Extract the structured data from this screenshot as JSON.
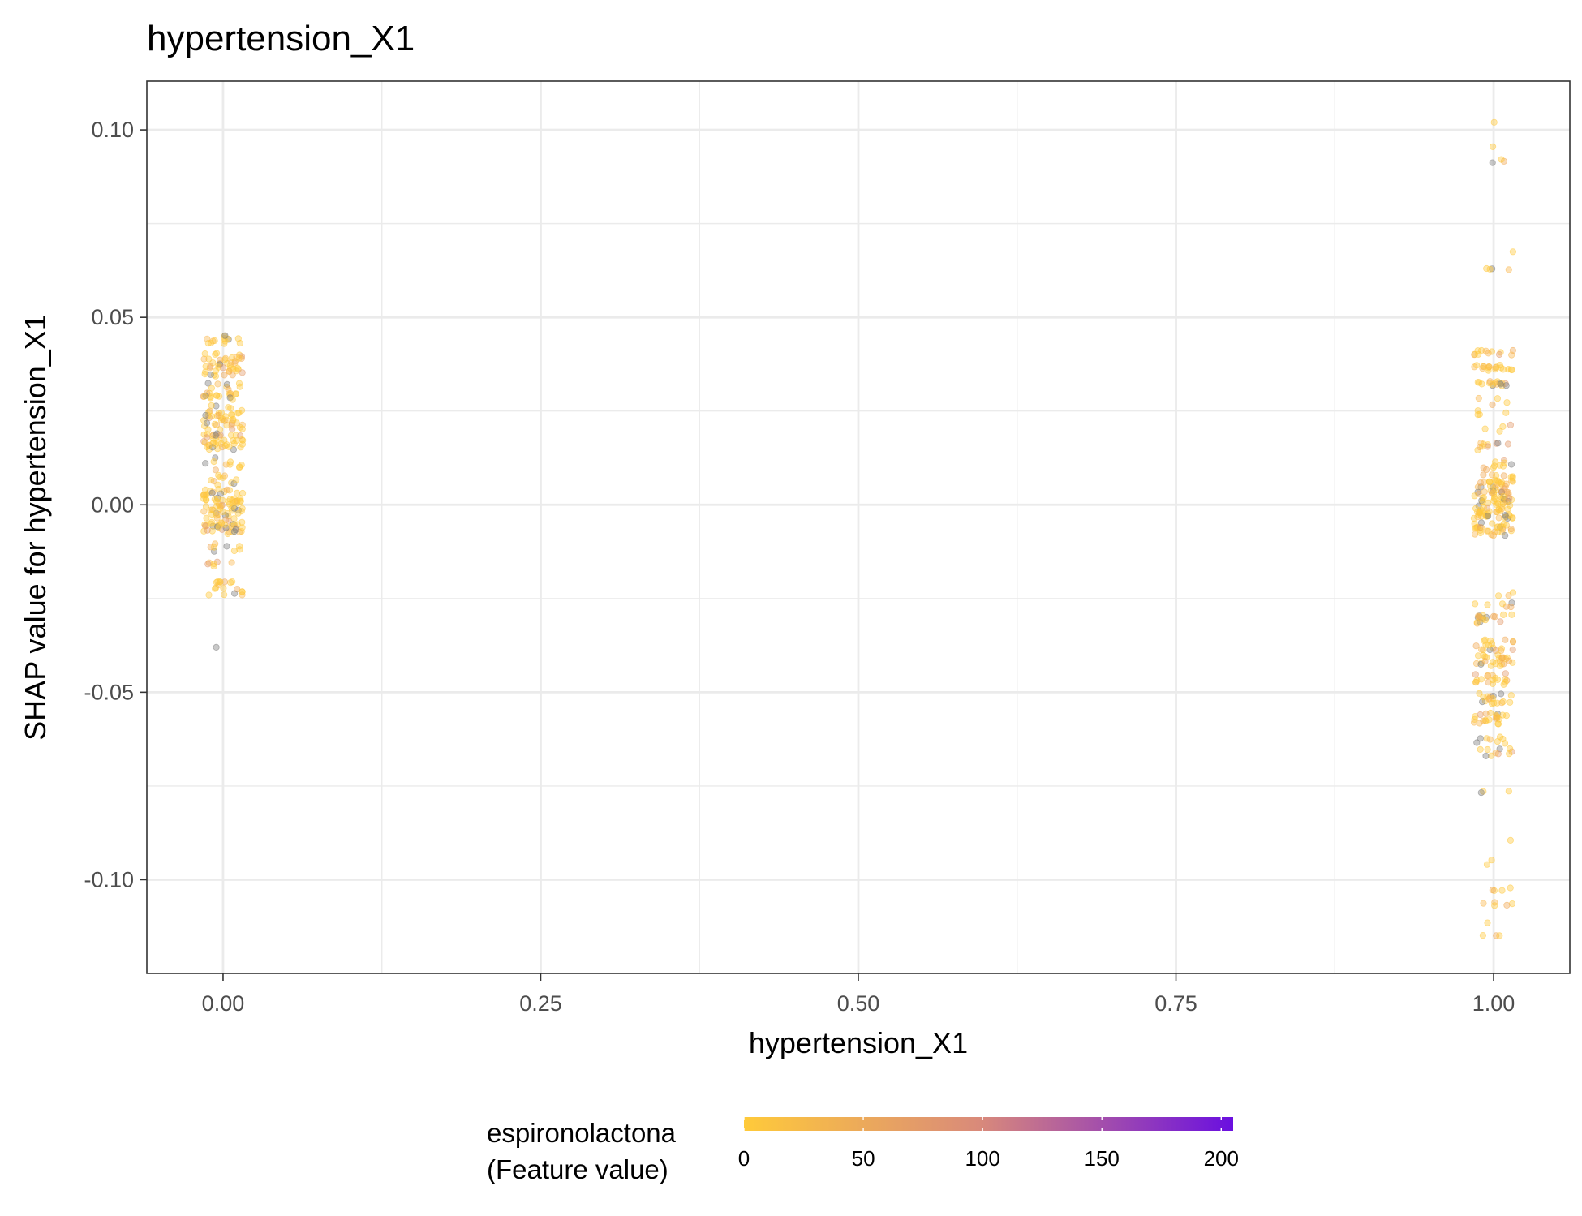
{
  "chart_data": {
    "type": "scatter",
    "title": "hypertension_X1",
    "xlabel": "hypertension_X1",
    "ylabel": "SHAP value for hypertension_X1",
    "xlim": [
      -0.06,
      1.06
    ],
    "ylim": [
      -0.125,
      0.113
    ],
    "x_ticks": [
      0.0,
      0.25,
      0.5,
      0.75,
      1.0
    ],
    "x_tick_labels": [
      "0.00",
      "0.25",
      "0.50",
      "0.75",
      "1.00"
    ],
    "y_ticks": [
      -0.1,
      -0.05,
      0.0,
      0.05,
      0.1
    ],
    "y_tick_labels": [
      "-0.10",
      "-0.05",
      "0.00",
      "0.05",
      "0.10"
    ],
    "grid": true,
    "legend": {
      "title_line1": "espironolactona",
      "title_line2": "(Feature value)",
      "position": "bottom",
      "scale_min": 0,
      "scale_max": 205,
      "ticks": [
        0,
        50,
        100,
        150,
        200
      ],
      "tick_labels": [
        "0",
        "50",
        "100",
        "150",
        "200"
      ],
      "color_low": "#FFCA3A",
      "color_mid": "#D98A7A",
      "color_high": "#6A0FE0",
      "na_color": "#7f7f7f"
    },
    "series": [
      {
        "x": 0,
        "clusters": [
          {
            "y": 0.044,
            "n": 14,
            "spread": 0.0012
          },
          {
            "y": 0.0385,
            "n": 26,
            "spread": 0.002
          },
          {
            "y": 0.0355,
            "n": 18,
            "spread": 0.0012
          },
          {
            "y": 0.0315,
            "n": 8,
            "spread": 0.001
          },
          {
            "y": 0.029,
            "n": 18,
            "spread": 0.001
          },
          {
            "y": 0.0255,
            "n": 8,
            "spread": 0.001
          },
          {
            "y": 0.0225,
            "n": 34,
            "spread": 0.0025
          },
          {
            "y": 0.0175,
            "n": 26,
            "spread": 0.0015
          },
          {
            "y": 0.0155,
            "n": 14,
            "spread": 0.001
          },
          {
            "y": 0.011,
            "n": 10,
            "spread": 0.002
          },
          {
            "y": 0.006,
            "n": 10,
            "spread": 0.002
          },
          {
            "y": 0.002,
            "n": 38,
            "spread": 0.0022
          },
          {
            "y": -0.002,
            "n": 30,
            "spread": 0.002
          },
          {
            "y": -0.006,
            "n": 34,
            "spread": 0.002
          },
          {
            "y": -0.011,
            "n": 8,
            "spread": 0.0015
          },
          {
            "y": -0.0155,
            "n": 6,
            "spread": 0.001
          },
          {
            "y": -0.0215,
            "n": 12,
            "spread": 0.001
          },
          {
            "y": -0.0235,
            "n": 6,
            "spread": 0.001
          },
          {
            "y": -0.038,
            "n": 1,
            "spread": 0.0
          }
        ]
      },
      {
        "x": 1,
        "clusters": [
          {
            "y": 0.102,
            "n": 1,
            "spread": 0.0
          },
          {
            "y": 0.0955,
            "n": 1,
            "spread": 0.0
          },
          {
            "y": 0.0915,
            "n": 3,
            "spread": 0.0006
          },
          {
            "y": 0.0675,
            "n": 1,
            "spread": 0.0
          },
          {
            "y": 0.063,
            "n": 4,
            "spread": 0.0004
          },
          {
            "y": 0.0405,
            "n": 12,
            "spread": 0.0008
          },
          {
            "y": 0.0365,
            "n": 18,
            "spread": 0.0008
          },
          {
            "y": 0.0325,
            "n": 16,
            "spread": 0.0008
          },
          {
            "y": 0.0275,
            "n": 4,
            "spread": 0.001
          },
          {
            "y": 0.0245,
            "n": 4,
            "spread": 0.001
          },
          {
            "y": 0.0205,
            "n": 4,
            "spread": 0.001
          },
          {
            "y": 0.0155,
            "n": 10,
            "spread": 0.001
          },
          {
            "y": 0.0105,
            "n": 10,
            "spread": 0.0015
          },
          {
            "y": 0.006,
            "n": 30,
            "spread": 0.002
          },
          {
            "y": 0.002,
            "n": 40,
            "spread": 0.002
          },
          {
            "y": -0.002,
            "n": 40,
            "spread": 0.002
          },
          {
            "y": -0.0065,
            "n": 30,
            "spread": 0.0018
          },
          {
            "y": -0.0235,
            "n": 3,
            "spread": 0.001
          },
          {
            "y": -0.0265,
            "n": 6,
            "spread": 0.001
          },
          {
            "y": -0.0305,
            "n": 18,
            "spread": 0.0012
          },
          {
            "y": -0.0375,
            "n": 18,
            "spread": 0.0015
          },
          {
            "y": -0.0415,
            "n": 24,
            "spread": 0.0015
          },
          {
            "y": -0.0465,
            "n": 18,
            "spread": 0.0015
          },
          {
            "y": -0.0515,
            "n": 18,
            "spread": 0.0015
          },
          {
            "y": -0.057,
            "n": 22,
            "spread": 0.0015
          },
          {
            "y": -0.0625,
            "n": 8,
            "spread": 0.0012
          },
          {
            "y": -0.066,
            "n": 10,
            "spread": 0.001
          },
          {
            "y": -0.0765,
            "n": 3,
            "spread": 0.0006
          },
          {
            "y": -0.0895,
            "n": 1,
            "spread": 0.0
          },
          {
            "y": -0.0955,
            "n": 2,
            "spread": 0.0008
          },
          {
            "y": -0.1025,
            "n": 4,
            "spread": 0.0006
          },
          {
            "y": -0.1065,
            "n": 5,
            "spread": 0.0006
          },
          {
            "y": -0.1115,
            "n": 1,
            "spread": 0.0
          },
          {
            "y": -0.1145,
            "n": 3,
            "spread": 0.0005
          }
        ]
      }
    ]
  }
}
